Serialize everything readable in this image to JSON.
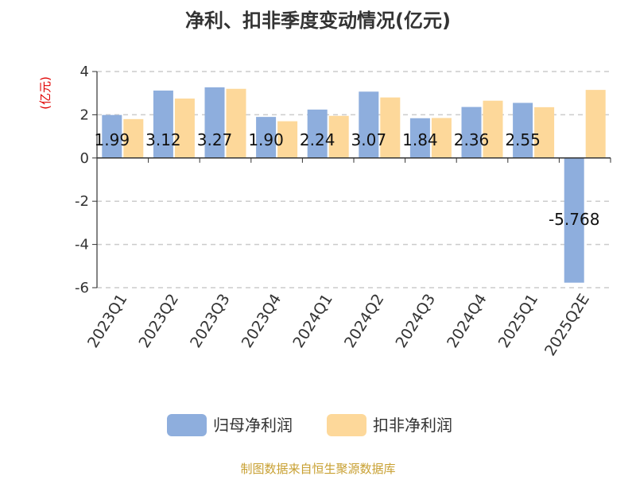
{
  "title": "净利、扣非季度变动情况(亿元)",
  "unit_label": "(亿元)",
  "source": "制图数据来自恒生聚源数据库",
  "colors": {
    "series1": "#8eaedd",
    "series2": "#fdd89a",
    "grid": "#cccccc",
    "axis": "#333333",
    "unit": "#e00000",
    "source": "#c8a032"
  },
  "chart_data": {
    "type": "bar",
    "title": "净利、扣非季度变动情况(亿元)",
    "ylabel": "(亿元)",
    "xlabel": "",
    "categories": [
      "2023Q1",
      "2023Q2",
      "2023Q3",
      "2023Q4",
      "2024Q1",
      "2024Q2",
      "2024Q3",
      "2024Q4",
      "2025Q1",
      "2025Q2E"
    ],
    "series": [
      {
        "name": "归母净利润",
        "values": [
          1.99,
          3.12,
          3.27,
          1.9,
          2.24,
          3.07,
          1.84,
          2.36,
          2.55,
          -5.768
        ],
        "labels": [
          "1.99",
          "3.12",
          "3.27",
          "1.90",
          "2.24",
          "3.07",
          "1.84",
          "2.36",
          "2.55",
          "-5.768"
        ]
      },
      {
        "name": "扣非净利润",
        "values": [
          1.8,
          2.75,
          3.2,
          1.7,
          1.95,
          2.8,
          1.85,
          2.65,
          2.35,
          3.15
        ]
      }
    ],
    "ylim": [
      -6,
      4
    ],
    "yticks": [
      4,
      2,
      0,
      -2,
      -4,
      -6
    ],
    "grid": true,
    "legend_position": "bottom"
  }
}
